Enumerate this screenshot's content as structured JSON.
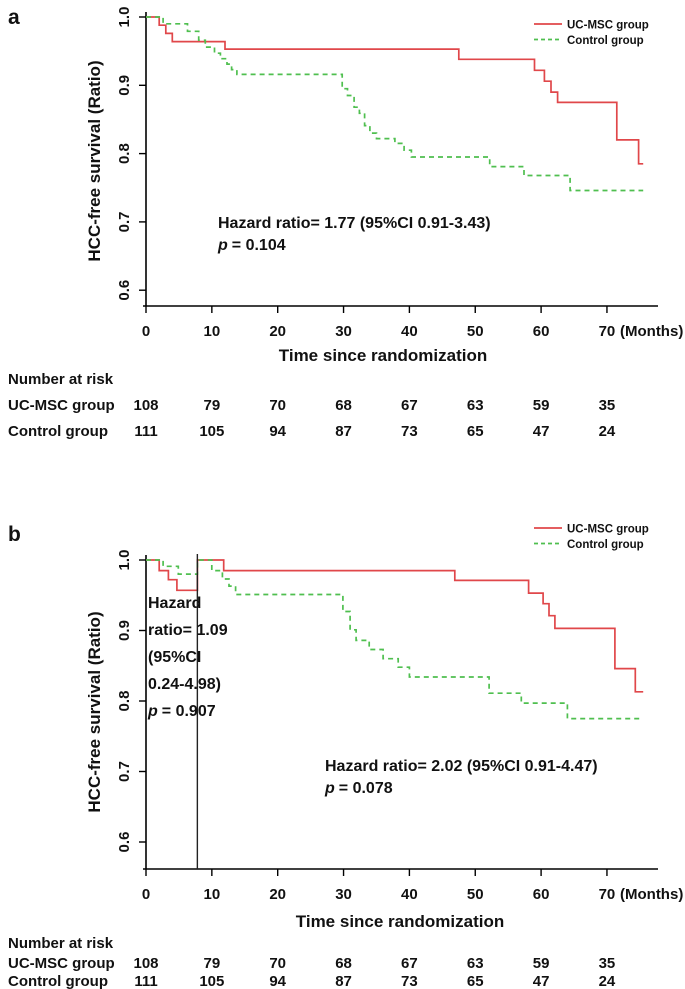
{
  "figure": {
    "panel_a_label": "a",
    "panel_b_label": "b"
  },
  "colors": {
    "uc_msc": "#e0474a",
    "control": "#4fbf4f",
    "axis": "#000000",
    "landmark_line": "#222222"
  },
  "chart_data": [
    {
      "panel": "a",
      "type": "line",
      "subtype": "kaplan-meier-step",
      "xlabel": "Time since randomization",
      "x_unit_label": "(Months)",
      "ylabel": "HCC-free survival (Ratio)",
      "x_ticks": [
        0,
        10,
        20,
        30,
        40,
        50,
        60,
        70
      ],
      "y_ticks": [
        "1.0",
        "0.9",
        "0.8",
        "0.7",
        "0.6"
      ],
      "xlim": [
        0,
        78
      ],
      "ylim": [
        0.58,
        1.0
      ],
      "grid": false,
      "legend_position": "top-right",
      "legend": [
        {
          "name": "UC-MSC group",
          "color": "#e0474a",
          "style": "solid"
        },
        {
          "name": "Control group",
          "color": "#4fbf4f",
          "style": "dashed"
        }
      ],
      "annotations": [
        {
          "lines": [
            "Hazard ratio= 1.77 (95%CI 0.91-3.43)",
            "p = 0.104"
          ]
        }
      ],
      "series": [
        {
          "name": "UC-MSC group",
          "color": "#e0474a",
          "dashed": false,
          "end_x": 75.5,
          "steps": [
            [
              0,
              1.0
            ],
            [
              2,
              0.988
            ],
            [
              3,
              0.976
            ],
            [
              4,
              0.964
            ],
            [
              12,
              0.953
            ],
            [
              47.5,
              0.938
            ],
            [
              59,
              0.922
            ],
            [
              60.5,
              0.906
            ],
            [
              61.5,
              0.89
            ],
            [
              62.5,
              0.875
            ],
            [
              71.5,
              0.82
            ],
            [
              74.8,
              0.785
            ]
          ]
        },
        {
          "name": "Control group",
          "color": "#4fbf4f",
          "dashed": true,
          "end_x": 75.5,
          "steps": [
            [
              0,
              1.0
            ],
            [
              2.6,
              0.99
            ],
            [
              6.3,
              0.979
            ],
            [
              8,
              0.966
            ],
            [
              9,
              0.956
            ],
            [
              10.4,
              0.947
            ],
            [
              11.3,
              0.939
            ],
            [
              12.3,
              0.931
            ],
            [
              13,
              0.923
            ],
            [
              13.8,
              0.916
            ],
            [
              29.8,
              0.895
            ],
            [
              30.6,
              0.885
            ],
            [
              31.6,
              0.868
            ],
            [
              32.4,
              0.859
            ],
            [
              33.2,
              0.841
            ],
            [
              34,
              0.83
            ],
            [
              35,
              0.822
            ],
            [
              37.8,
              0.815
            ],
            [
              39.2,
              0.805
            ],
            [
              40.3,
              0.795
            ],
            [
              52.2,
              0.781
            ],
            [
              57.4,
              0.768
            ],
            [
              64.4,
              0.746
            ]
          ]
        }
      ],
      "number_at_risk": {
        "title": "Number at risk",
        "time_points": [
          0,
          10,
          20,
          30,
          40,
          50,
          60,
          70
        ],
        "rows": [
          {
            "label": "UC-MSC group",
            "values": [
              "108",
              "79",
              "70",
              "68",
              "67",
              "63",
              "59",
              "35"
            ]
          },
          {
            "label": "Control group",
            "values": [
              "111",
              "105",
              "94",
              "87",
              "73",
              "65",
              "47",
              "24"
            ]
          }
        ]
      }
    },
    {
      "panel": "b",
      "type": "line",
      "subtype": "kaplan-meier-step-landmark",
      "xlabel": "Time since randomization",
      "x_unit_label": "(Months)",
      "ylabel": "HCC-free survival (Ratio)",
      "x_ticks": [
        0,
        10,
        20,
        30,
        40,
        50,
        60,
        70
      ],
      "y_ticks": [
        "1.0",
        "0.9",
        "0.8",
        "0.7",
        "0.6"
      ],
      "xlim": [
        0,
        78
      ],
      "ylim": [
        0.56,
        1.0
      ],
      "grid": false,
      "landmark_vline_x": 7.8,
      "legend_position": "top-right",
      "legend": [
        {
          "name": "UC-MSC group",
          "color": "#e0474a",
          "style": "solid"
        },
        {
          "name": "Control group",
          "color": "#4fbf4f",
          "style": "dashed"
        }
      ],
      "annotations": [
        {
          "lines": [
            "Hazard",
            "ratio= 1.09",
            "(95%CI",
            "0.24-4.98)",
            "p = 0.907"
          ]
        },
        {
          "lines": [
            "Hazard ratio= 2.02 (95%CI 0.91-4.47)",
            "p = 0.078"
          ]
        }
      ],
      "series": [
        {
          "name": "UC-MSC group",
          "color": "#e0474a",
          "dashed": false,
          "end_x": 75.5,
          "steps": [
            [
              0,
              1.0
            ],
            [
              2,
              0.985
            ],
            [
              3.4,
              0.972
            ],
            [
              4.7,
              0.957
            ],
            [
              7.8,
              1.0
            ],
            [
              11.8,
              0.985
            ],
            [
              46.9,
              0.971
            ],
            [
              58.1,
              0.953
            ],
            [
              60.3,
              0.938
            ],
            [
              61.2,
              0.921
            ],
            [
              62.1,
              0.903
            ],
            [
              71.2,
              0.846
            ],
            [
              74.3,
              0.813
            ]
          ]
        },
        {
          "name": "Control group",
          "color": "#4fbf4f",
          "dashed": true,
          "end_x": 75.5,
          "steps": [
            [
              0,
              1.0
            ],
            [
              2.6,
              0.991
            ],
            [
              4.9,
              0.98
            ],
            [
              7.8,
              1.0
            ],
            [
              10,
              0.985
            ],
            [
              11.6,
              0.973
            ],
            [
              12.6,
              0.963
            ],
            [
              13.6,
              0.951
            ],
            [
              29.9,
              0.927
            ],
            [
              31,
              0.901
            ],
            [
              31.9,
              0.886
            ],
            [
              33.9,
              0.873
            ],
            [
              36,
              0.86
            ],
            [
              38.3,
              0.848
            ],
            [
              40,
              0.834
            ],
            [
              52.1,
              0.811
            ],
            [
              57,
              0.797
            ],
            [
              64,
              0.775
            ]
          ]
        }
      ],
      "number_at_risk": {
        "title": "Number at risk",
        "time_points": [
          0,
          10,
          20,
          30,
          40,
          50,
          60,
          70
        ],
        "rows": [
          {
            "label": "UC-MSC group",
            "values": [
              "108",
              "79",
              "70",
              "68",
              "67",
              "63",
              "59",
              "35"
            ]
          },
          {
            "label": "Control group",
            "values": [
              "111",
              "105",
              "94",
              "87",
              "73",
              "65",
              "47",
              "24"
            ]
          }
        ]
      }
    }
  ]
}
